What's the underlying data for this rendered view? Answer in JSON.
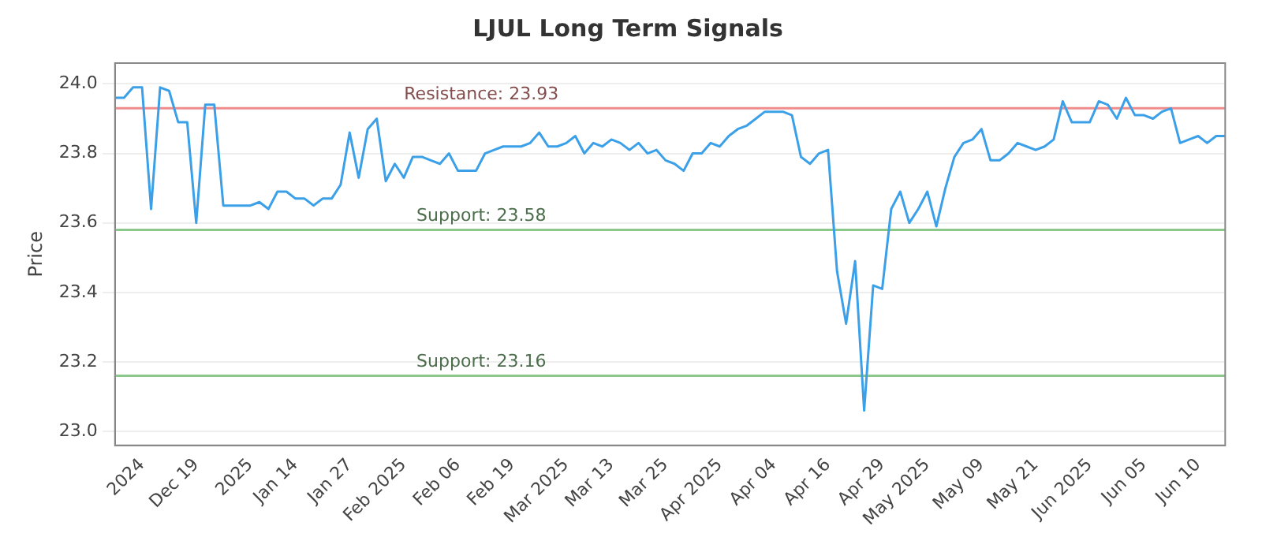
{
  "chart_data": {
    "type": "line",
    "title": "LJUL Long Term Signals",
    "ylabel": "Price",
    "categories": [
      null,
      null,
      null,
      "2024",
      null,
      null,
      null,
      null,
      null,
      "Dec 19",
      null,
      null,
      null,
      null,
      null,
      "2025",
      null,
      null,
      null,
      null,
      "Jan 14",
      null,
      null,
      null,
      null,
      null,
      "Jan 27",
      null,
      null,
      null,
      null,
      null,
      "Feb 2025",
      null,
      null,
      null,
      null,
      null,
      "Feb 06",
      null,
      null,
      null,
      null,
      null,
      "Feb 19",
      null,
      null,
      null,
      null,
      null,
      "Mar 2025",
      null,
      null,
      null,
      null,
      "Mar 13",
      null,
      null,
      null,
      null,
      null,
      "Mar 25",
      null,
      null,
      null,
      null,
      null,
      "Apr 2025",
      null,
      null,
      null,
      null,
      null,
      "Apr 04",
      null,
      null,
      null,
      null,
      null,
      "Apr 16",
      null,
      null,
      null,
      null,
      null,
      "Apr 29",
      null,
      null,
      null,
      null,
      "May 2025",
      null,
      null,
      null,
      null,
      null,
      "May 09",
      null,
      null,
      null,
      null,
      null,
      "May 21",
      null,
      null,
      null,
      null,
      null,
      "Jun 2025",
      null,
      null,
      null,
      null,
      null,
      "Jun 05",
      null,
      null,
      null,
      null,
      null,
      "Jun 10",
      null,
      null,
      null
    ],
    "series": [
      {
        "color": "#3ba0e8",
        "values": [
          23.96,
          23.96,
          23.99,
          23.99,
          23.64,
          23.99,
          23.98,
          23.89,
          23.89,
          23.6,
          23.94,
          23.94,
          23.65,
          23.65,
          23.65,
          23.65,
          23.66,
          23.64,
          23.69,
          23.69,
          23.67,
          23.67,
          23.65,
          23.67,
          23.67,
          23.71,
          23.86,
          23.73,
          23.87,
          23.9,
          23.72,
          23.77,
          23.73,
          23.79,
          23.79,
          23.78,
          23.77,
          23.8,
          23.75,
          23.75,
          23.75,
          23.8,
          23.81,
          23.82,
          23.82,
          23.82,
          23.83,
          23.86,
          23.82,
          23.82,
          23.83,
          23.85,
          23.8,
          23.83,
          23.82,
          23.84,
          23.83,
          23.81,
          23.83,
          23.8,
          23.81,
          23.78,
          23.77,
          23.75,
          23.8,
          23.8,
          23.83,
          23.82,
          23.85,
          23.87,
          23.88,
          23.9,
          23.92,
          23.92,
          23.92,
          23.91,
          23.79,
          23.77,
          23.8,
          23.81,
          23.46,
          23.31,
          23.49,
          23.06,
          23.42,
          23.41,
          23.64,
          23.69,
          23.6,
          23.64,
          23.69,
          23.59,
          23.7,
          23.79,
          23.83,
          23.84,
          23.87,
          23.78,
          23.78,
          23.8,
          23.83,
          23.82,
          23.81,
          23.82,
          23.84,
          23.95,
          23.89,
          23.89,
          23.89,
          23.95,
          23.94,
          23.9,
          23.96,
          23.91,
          23.91,
          23.9,
          23.92,
          23.93,
          23.83,
          23.84,
          23.85,
          23.83,
          23.85,
          23.85
        ]
      }
    ],
    "ylim": [
      22.96,
      24.06
    ],
    "yticks": [
      {
        "value": 23,
        "label": "23.0"
      },
      {
        "value": 23.2,
        "label": "23.2"
      },
      {
        "value": 23.4,
        "label": "23.4"
      },
      {
        "value": 23.6,
        "label": "23.6"
      },
      {
        "value": 23.8,
        "label": "23.8"
      },
      {
        "value": 24,
        "label": "24.0"
      }
    ],
    "ref_lines": [
      {
        "axis": "y",
        "value": 23.93,
        "label": "Resistance: 23.93",
        "color": "#f08c8c"
      },
      {
        "axis": "y",
        "value": 23.58,
        "label": "Support: 23.58",
        "color": "#8cc88c"
      },
      {
        "axis": "y",
        "value": 23.16,
        "label": "Support: 23.16",
        "color": "#8cc88c"
      }
    ],
    "grid": "y",
    "legend": false,
    "marker": "none",
    "line_style": "solid"
  }
}
